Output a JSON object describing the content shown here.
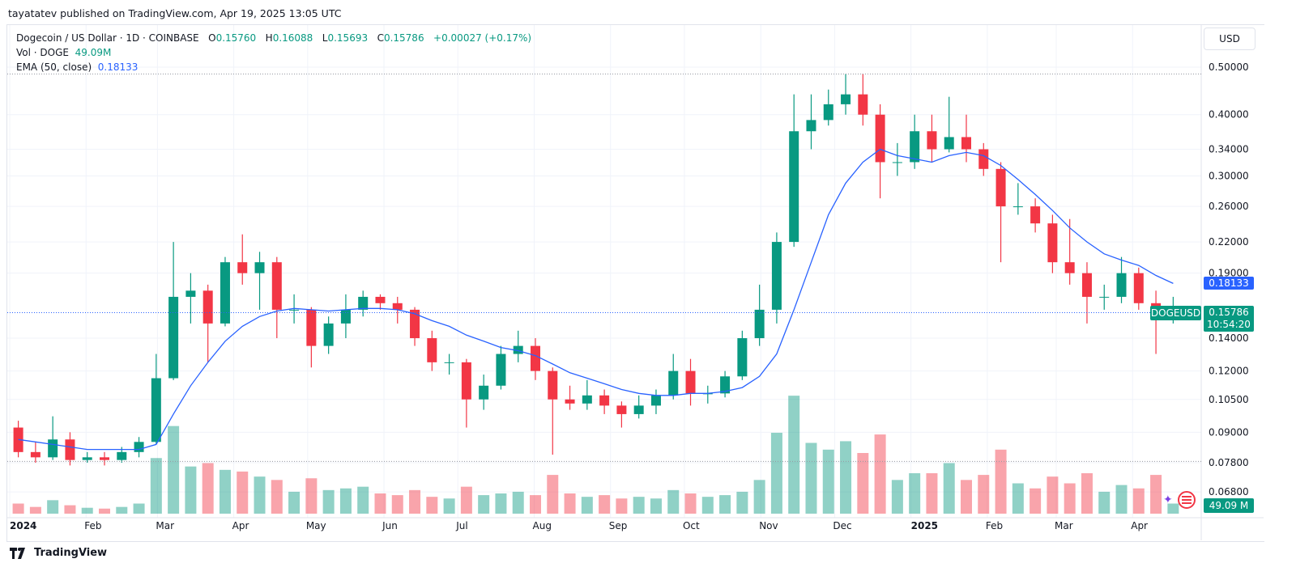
{
  "published": "tayatatev published on TradingView.com, Apr 19, 2025 13:05 UTC",
  "legend": {
    "symbol": "Dogecoin / US Dollar · 1D · COINBASE",
    "o_label": "O",
    "o": "0.15760",
    "h_label": "H",
    "h": "0.16088",
    "l_label": "L",
    "l": "0.15693",
    "c_label": "C",
    "c": "0.15786",
    "change": "+0.00027 (+0.17%)",
    "vol_label": "Vol · DOGE",
    "vol": "49.09M",
    "ema_label": "EMA (50, close)",
    "ema": "0.18133"
  },
  "currency_button": "USD",
  "badges": {
    "ema_value": "0.18133",
    "symbol": "DOGEUSD",
    "last_price": "0.15786",
    "countdown": "10:54:20",
    "volume": "49.09 M"
  },
  "footer": {
    "brand": "TradingView"
  },
  "colors": {
    "up": "#089981",
    "down": "#f23645",
    "ema": "#2962ff",
    "grid": "#f0f3fa"
  },
  "chart_data": {
    "type": "candlestick",
    "scale": "log",
    "note_resolution": "weekly approximation of daily candles",
    "ylim": [
      0.066,
      0.52
    ],
    "y_ticks": [
      "0.50000",
      "0.40000",
      "0.34000",
      "0.30000",
      "0.26000",
      "0.22000",
      "0.19000",
      "0.14000",
      "0.12000",
      "0.10500",
      "0.09000",
      "0.07800",
      "0.06800"
    ],
    "x_ticks": [
      {
        "label": "2024",
        "date": "2024-01-01",
        "bold": true
      },
      {
        "label": "Feb",
        "date": "2024-02-01"
      },
      {
        "label": "Mar",
        "date": "2024-03-01"
      },
      {
        "label": "Apr",
        "date": "2024-04-01"
      },
      {
        "label": "May",
        "date": "2024-05-01"
      },
      {
        "label": "Jun",
        "date": "2024-06-01"
      },
      {
        "label": "Jul",
        "date": "2024-07-01"
      },
      {
        "label": "Aug",
        "date": "2024-08-01"
      },
      {
        "label": "Sep",
        "date": "2024-09-01"
      },
      {
        "label": "Oct",
        "date": "2024-10-01"
      },
      {
        "label": "Nov",
        "date": "2024-11-01"
      },
      {
        "label": "Dec",
        "date": "2024-12-01"
      },
      {
        "label": "2025",
        "date": "2025-01-01",
        "bold": true
      },
      {
        "label": "Feb",
        "date": "2025-02-01"
      },
      {
        "label": "Mar",
        "date": "2025-03-01"
      },
      {
        "label": "Apr",
        "date": "2025-04-01"
      }
    ],
    "dates": [
      "2024-01-01",
      "2024-01-08",
      "2024-01-15",
      "2024-01-22",
      "2024-01-29",
      "2024-02-05",
      "2024-02-12",
      "2024-02-19",
      "2024-02-26",
      "2024-03-04",
      "2024-03-11",
      "2024-03-18",
      "2024-03-25",
      "2024-04-01",
      "2024-04-08",
      "2024-04-15",
      "2024-04-22",
      "2024-04-29",
      "2024-05-06",
      "2024-05-13",
      "2024-05-20",
      "2024-05-27",
      "2024-06-03",
      "2024-06-10",
      "2024-06-17",
      "2024-06-24",
      "2024-07-01",
      "2024-07-08",
      "2024-07-15",
      "2024-07-22",
      "2024-07-29",
      "2024-08-05",
      "2024-08-12",
      "2024-08-19",
      "2024-08-26",
      "2024-09-02",
      "2024-09-09",
      "2024-09-16",
      "2024-09-23",
      "2024-09-30",
      "2024-10-07",
      "2024-10-14",
      "2024-10-21",
      "2024-10-28",
      "2024-11-04",
      "2024-11-11",
      "2024-11-18",
      "2024-11-25",
      "2024-12-02",
      "2024-12-09",
      "2024-12-16",
      "2024-12-23",
      "2024-12-30",
      "2025-01-06",
      "2025-01-13",
      "2025-01-20",
      "2025-01-27",
      "2025-02-03",
      "2025-02-10",
      "2025-02-17",
      "2025-02-24",
      "2025-03-03",
      "2025-03-10",
      "2025-03-17",
      "2025-03-24",
      "2025-03-31",
      "2025-04-07",
      "2025-04-14"
    ],
    "ohlc": [
      [
        0.092,
        0.095,
        0.08,
        0.082
      ],
      [
        0.082,
        0.086,
        0.078,
        0.08
      ],
      [
        0.08,
        0.097,
        0.079,
        0.087
      ],
      [
        0.087,
        0.09,
        0.077,
        0.079
      ],
      [
        0.079,
        0.082,
        0.078,
        0.08
      ],
      [
        0.08,
        0.082,
        0.077,
        0.079
      ],
      [
        0.079,
        0.084,
        0.078,
        0.082
      ],
      [
        0.082,
        0.088,
        0.08,
        0.086
      ],
      [
        0.086,
        0.13,
        0.085,
        0.116
      ],
      [
        0.116,
        0.22,
        0.115,
        0.17
      ],
      [
        0.17,
        0.19,
        0.15,
        0.175
      ],
      [
        0.175,
        0.18,
        0.125,
        0.15
      ],
      [
        0.15,
        0.205,
        0.148,
        0.2
      ],
      [
        0.2,
        0.228,
        0.18,
        0.19
      ],
      [
        0.19,
        0.21,
        0.16,
        0.2
      ],
      [
        0.2,
        0.205,
        0.14,
        0.16
      ],
      [
        0.16,
        0.172,
        0.15,
        0.16
      ],
      [
        0.16,
        0.162,
        0.122,
        0.135
      ],
      [
        0.135,
        0.155,
        0.13,
        0.15
      ],
      [
        0.15,
        0.172,
        0.14,
        0.16
      ],
      [
        0.16,
        0.175,
        0.155,
        0.17
      ],
      [
        0.17,
        0.172,
        0.16,
        0.165
      ],
      [
        0.165,
        0.17,
        0.15,
        0.16
      ],
      [
        0.16,
        0.162,
        0.135,
        0.14
      ],
      [
        0.14,
        0.145,
        0.12,
        0.125
      ],
      [
        0.125,
        0.13,
        0.118,
        0.125
      ],
      [
        0.125,
        0.127,
        0.092,
        0.105
      ],
      [
        0.105,
        0.118,
        0.1,
        0.112
      ],
      [
        0.112,
        0.135,
        0.11,
        0.13
      ],
      [
        0.13,
        0.145,
        0.125,
        0.135
      ],
      [
        0.135,
        0.14,
        0.115,
        0.12
      ],
      [
        0.12,
        0.122,
        0.081,
        0.105
      ],
      [
        0.105,
        0.112,
        0.1,
        0.103
      ],
      [
        0.103,
        0.115,
        0.1,
        0.107
      ],
      [
        0.107,
        0.11,
        0.098,
        0.102
      ],
      [
        0.102,
        0.104,
        0.092,
        0.098
      ],
      [
        0.098,
        0.107,
        0.096,
        0.102
      ],
      [
        0.102,
        0.11,
        0.098,
        0.107
      ],
      [
        0.107,
        0.13,
        0.105,
        0.12
      ],
      [
        0.12,
        0.127,
        0.102,
        0.108
      ],
      [
        0.108,
        0.112,
        0.103,
        0.108
      ],
      [
        0.108,
        0.12,
        0.106,
        0.117
      ],
      [
        0.117,
        0.145,
        0.115,
        0.14
      ],
      [
        0.14,
        0.18,
        0.135,
        0.16
      ],
      [
        0.16,
        0.23,
        0.15,
        0.22
      ],
      [
        0.22,
        0.44,
        0.215,
        0.37
      ],
      [
        0.37,
        0.44,
        0.34,
        0.39
      ],
      [
        0.39,
        0.45,
        0.38,
        0.42
      ],
      [
        0.42,
        0.484,
        0.4,
        0.44
      ],
      [
        0.44,
        0.485,
        0.38,
        0.4
      ],
      [
        0.4,
        0.42,
        0.27,
        0.32
      ],
      [
        0.32,
        0.35,
        0.3,
        0.32
      ],
      [
        0.32,
        0.4,
        0.31,
        0.37
      ],
      [
        0.37,
        0.4,
        0.32,
        0.34
      ],
      [
        0.34,
        0.435,
        0.335,
        0.36
      ],
      [
        0.36,
        0.4,
        0.32,
        0.34
      ],
      [
        0.34,
        0.35,
        0.3,
        0.31
      ],
      [
        0.31,
        0.32,
        0.2,
        0.26
      ],
      [
        0.26,
        0.29,
        0.25,
        0.26
      ],
      [
        0.26,
        0.27,
        0.23,
        0.24
      ],
      [
        0.24,
        0.25,
        0.19,
        0.2
      ],
      [
        0.2,
        0.245,
        0.18,
        0.19
      ],
      [
        0.19,
        0.2,
        0.15,
        0.17
      ],
      [
        0.17,
        0.18,
        0.16,
        0.17
      ],
      [
        0.17,
        0.205,
        0.165,
        0.19
      ],
      [
        0.19,
        0.195,
        0.16,
        0.165
      ],
      [
        0.165,
        0.175,
        0.13,
        0.155
      ],
      [
        0.155,
        0.17,
        0.15,
        0.158
      ]
    ],
    "volume_m": [
      60,
      40,
      80,
      50,
      35,
      30,
      40,
      60,
      330,
      520,
      280,
      300,
      260,
      250,
      220,
      200,
      130,
      210,
      140,
      150,
      160,
      120,
      110,
      140,
      100,
      90,
      160,
      110,
      120,
      130,
      110,
      230,
      120,
      100,
      110,
      90,
      100,
      90,
      140,
      120,
      100,
      110,
      130,
      200,
      480,
      700,
      420,
      380,
      430,
      360,
      470,
      200,
      240,
      240,
      300,
      200,
      230,
      380,
      180,
      150,
      220,
      180,
      240,
      130,
      170,
      150,
      230,
      60
    ],
    "ema50": [
      0.087,
      0.086,
      0.085,
      0.084,
      0.083,
      0.083,
      0.083,
      0.083,
      0.085,
      0.098,
      0.112,
      0.125,
      0.138,
      0.148,
      0.155,
      0.159,
      0.161,
      0.16,
      0.159,
      0.16,
      0.161,
      0.161,
      0.16,
      0.157,
      0.152,
      0.148,
      0.142,
      0.138,
      0.134,
      0.132,
      0.129,
      0.124,
      0.119,
      0.116,
      0.113,
      0.11,
      0.108,
      0.107,
      0.107,
      0.108,
      0.108,
      0.109,
      0.111,
      0.117,
      0.13,
      0.16,
      0.2,
      0.25,
      0.29,
      0.32,
      0.34,
      0.33,
      0.325,
      0.32,
      0.33,
      0.335,
      0.33,
      0.315,
      0.295,
      0.275,
      0.255,
      0.235,
      0.22,
      0.208,
      0.202,
      0.197,
      0.188,
      0.181
    ],
    "last_price": 0.15786,
    "ema_last": 0.18133,
    "range_high": 0.484,
    "range_low": 0.0785
  }
}
